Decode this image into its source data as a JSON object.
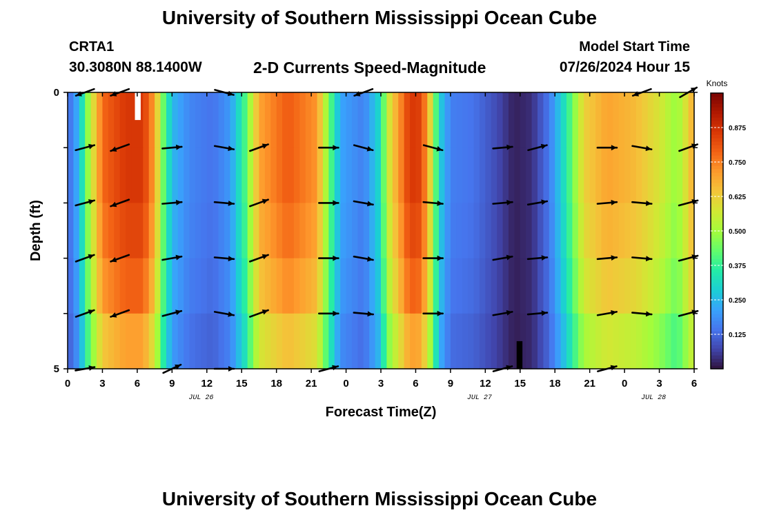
{
  "header": {
    "title": "University of Southern Mississippi Ocean Cube",
    "station": "CRTA1",
    "coords": "30.3080N  88.1400W",
    "plot_title": "2-D Currents Speed-Magnitude",
    "model_label": "Model Start Time",
    "model_time": "07/26/2024 Hour 15"
  },
  "footer": {
    "title": "University of Southern Mississippi Ocean Cube"
  },
  "chart_data": {
    "type": "heatmap",
    "title": "2-D Currents Speed-Magnitude",
    "xlabel": "Forecast Time(Z)",
    "ylabel": "Depth (ft)",
    "x_tick_labels": [
      "0",
      "3",
      "6",
      "9",
      "12",
      "15",
      "18",
      "21",
      "0",
      "3",
      "6",
      "9",
      "12",
      "15",
      "18",
      "21",
      "0",
      "3",
      "6"
    ],
    "x_hours": [
      0,
      3,
      6,
      9,
      12,
      15,
      18,
      21,
      24,
      27,
      30,
      33,
      36,
      39,
      42,
      45,
      48,
      51,
      54
    ],
    "xlim": [
      0,
      54
    ],
    "date_labels": [
      {
        "text": "JUL 26",
        "hour": 11.5
      },
      {
        "text": "JUL 27",
        "hour": 35.5
      },
      {
        "text": "JUL 28",
        "hour": 50.5
      }
    ],
    "y_tick_labels": [
      "0",
      "5"
    ],
    "ylim": [
      0,
      5
    ],
    "depth_levels": 5,
    "colorbar": {
      "label": "Knots",
      "ticks": [
        "0.125",
        "0.250",
        "0.375",
        "0.500",
        "0.625",
        "0.750",
        "0.875"
      ],
      "tick_values": [
        0.125,
        0.25,
        0.375,
        0.5,
        0.625,
        0.75,
        0.875
      ],
      "range": [
        0,
        1
      ],
      "colors": [
        "#30123b",
        "#4145ab",
        "#4675ed",
        "#39a2fc",
        "#1bcfd4",
        "#24eca6",
        "#61fc6c",
        "#a4fc3b",
        "#d1e834",
        "#f3c63a",
        "#fe9b2d",
        "#f36315",
        "#d93806",
        "#b11901",
        "#7a0402"
      ]
    },
    "speed_profile": [
      {
        "hour": 0.0,
        "speed": 0.12
      },
      {
        "hour": 1.0,
        "speed": 0.25
      },
      {
        "hour": 1.8,
        "speed": 0.5
      },
      {
        "hour": 3.0,
        "speed": 0.78
      },
      {
        "hour": 5.0,
        "speed": 0.86
      },
      {
        "hour": 6.5,
        "speed": 0.86
      },
      {
        "hour": 7.5,
        "speed": 0.7
      },
      {
        "hour": 8.2,
        "speed": 0.45
      },
      {
        "hour": 9.0,
        "speed": 0.25
      },
      {
        "hour": 10.5,
        "speed": 0.17
      },
      {
        "hour": 12.5,
        "speed": 0.14
      },
      {
        "hour": 14.0,
        "speed": 0.2
      },
      {
        "hour": 15.3,
        "speed": 0.4
      },
      {
        "hour": 16.5,
        "speed": 0.7
      },
      {
        "hour": 19.0,
        "speed": 0.8
      },
      {
        "hour": 21.5,
        "speed": 0.72
      },
      {
        "hour": 22.5,
        "speed": 0.45
      },
      {
        "hour": 23.5,
        "speed": 0.22
      },
      {
        "hour": 25.5,
        "speed": 0.16
      },
      {
        "hour": 26.8,
        "speed": 0.3
      },
      {
        "hour": 27.8,
        "speed": 0.6
      },
      {
        "hour": 29.5,
        "speed": 0.86
      },
      {
        "hour": 30.5,
        "speed": 0.84
      },
      {
        "hour": 31.3,
        "speed": 0.6
      },
      {
        "hour": 32.0,
        "speed": 0.3
      },
      {
        "hour": 33.0,
        "speed": 0.16
      },
      {
        "hour": 35.0,
        "speed": 0.14
      },
      {
        "hour": 37.0,
        "speed": 0.08
      },
      {
        "hour": 38.5,
        "speed": 0.02
      },
      {
        "hour": 40.0,
        "speed": 0.04
      },
      {
        "hour": 41.5,
        "speed": 0.15
      },
      {
        "hour": 43.0,
        "speed": 0.35
      },
      {
        "hour": 44.5,
        "speed": 0.62
      },
      {
        "hour": 46.5,
        "speed": 0.7
      },
      {
        "hour": 49.0,
        "speed": 0.66
      },
      {
        "hour": 51.0,
        "speed": 0.58
      },
      {
        "hour": 52.5,
        "speed": 0.48
      },
      {
        "hour": 53.5,
        "speed": 0.62
      },
      {
        "hour": 54.0,
        "speed": 0.7
      }
    ],
    "depth_factor": [
      1.0,
      1.0,
      0.97,
      0.92,
      0.82
    ],
    "vectors": [
      {
        "hour": 1.5,
        "dirs": [
          200,
          15,
          15,
          20,
          20,
          10
        ]
      },
      {
        "hour": 4.5,
        "dirs": [
          200,
          200,
          200,
          200,
          200,
          null
        ]
      },
      {
        "hour": 9.0,
        "dirs": [
          null,
          5,
          5,
          10,
          15,
          25
        ]
      },
      {
        "hour": 13.5,
        "dirs": [
          -15,
          -10,
          -5,
          -5,
          -10,
          0
        ]
      },
      {
        "hour": 16.5,
        "dirs": [
          null,
          20,
          20,
          20,
          20,
          null
        ]
      },
      {
        "hour": 22.5,
        "dirs": [
          null,
          0,
          0,
          0,
          0,
          15
        ]
      },
      {
        "hour": 25.5,
        "dirs": [
          200,
          -15,
          -10,
          -10,
          -5,
          null
        ]
      },
      {
        "hour": 31.5,
        "dirs": [
          null,
          -15,
          -5,
          0,
          0,
          null
        ]
      },
      {
        "hour": 37.5,
        "dirs": [
          null,
          5,
          5,
          10,
          10,
          15
        ]
      },
      {
        "hour": 40.5,
        "dirs": [
          null,
          15,
          10,
          5,
          5,
          null
        ]
      },
      {
        "hour": 46.5,
        "dirs": [
          null,
          0,
          5,
          5,
          10,
          15
        ]
      },
      {
        "hour": 49.5,
        "dirs": [
          200,
          -10,
          -5,
          -5,
          -5,
          null
        ]
      },
      {
        "hour": 53.5,
        "dirs": [
          30,
          20,
          15,
          15,
          15,
          null
        ]
      }
    ],
    "missing_bars": [
      {
        "hour_start": 5.8,
        "hour_end": 6.3,
        "depth_start": 0.0,
        "depth_end": 0.5,
        "color": "#ffffff"
      },
      {
        "hour_start": 38.7,
        "hour_end": 39.2,
        "depth_start": 4.5,
        "depth_end": 5.0,
        "color": "#000000"
      }
    ]
  }
}
